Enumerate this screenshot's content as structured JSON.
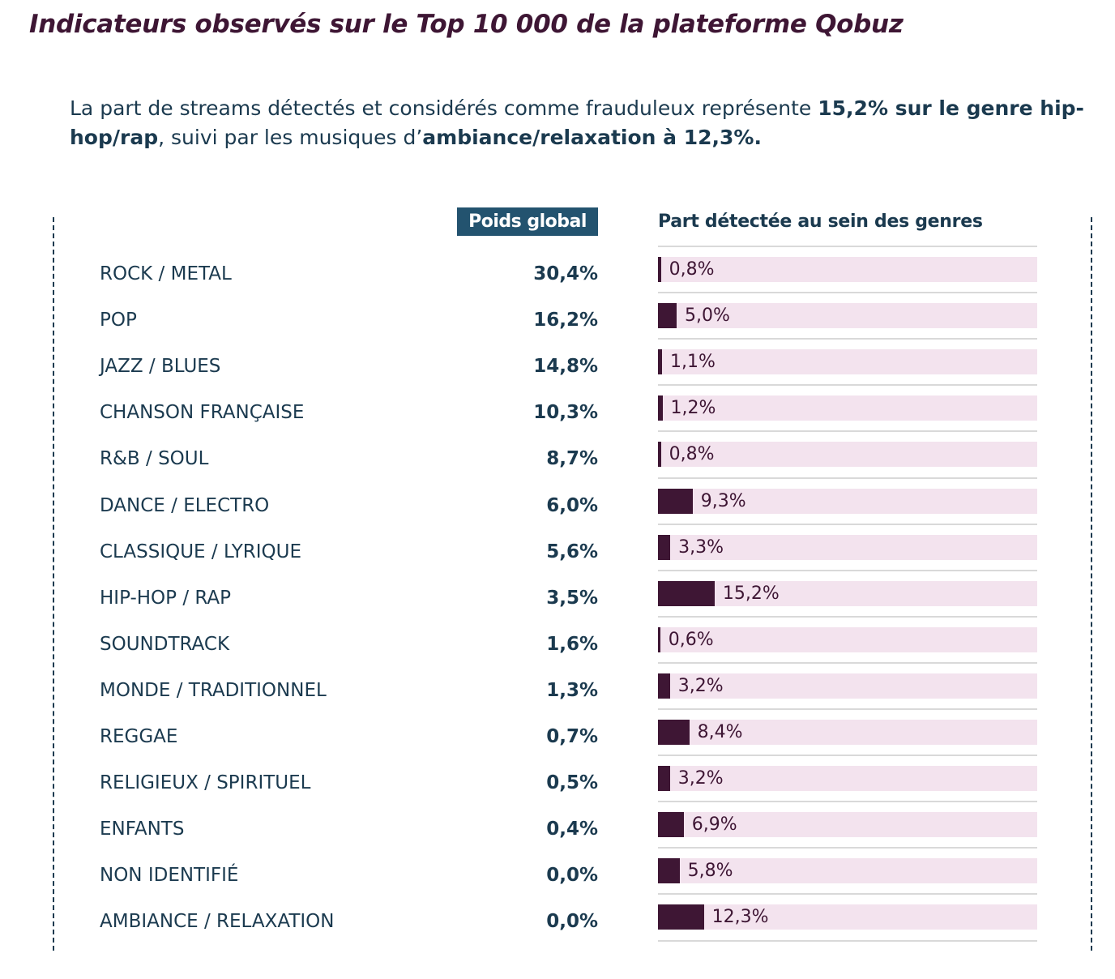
{
  "title": "Indicateurs observés sur le Top 10 000 de la plateforme Qobuz",
  "intro": {
    "p1": "La part de streams détectés et considérés comme frauduleux représente ",
    "b1": "15,2% sur le genre hip-hop/rap",
    "p2": ", suivi par les musiques d’",
    "b2": "ambiance/relaxation à 12,3%."
  },
  "colors": {
    "bar": "#3e1634",
    "track": "#f3e3ee",
    "header_bg": "#23536f",
    "text": "#1b3a4f"
  },
  "chart_data": {
    "type": "bar",
    "orientation": "horizontal",
    "column_headers": {
      "poids": "Poids global",
      "part": "Part détectée au sein des genres"
    },
    "categories": [
      "ROCK / METAL",
      "POP",
      "JAZZ / BLUES",
      "CHANSON FRANÇAISE",
      "R&B / SOUL",
      "DANCE / ELECTRO",
      "CLASSIQUE / LYRIQUE",
      "HIP-HOP / RAP",
      "SOUNDTRACK",
      "MONDE / TRADITIONNEL",
      "REGGAE",
      "RELIGIEUX / SPIRITUEL",
      "ENFANTS",
      "NON IDENTIFIÉ",
      "AMBIANCE / RELAXATION"
    ],
    "poids_global_labels": [
      "30,4%",
      "16,2%",
      "14,8%",
      "10,3%",
      "8,7%",
      "6,0%",
      "5,6%",
      "3,5%",
      "1,6%",
      "1,3%",
      "0,7%",
      "0,5%",
      "0,4%",
      "0,0%",
      "0,0%"
    ],
    "poids_global": [
      30.4,
      16.2,
      14.8,
      10.3,
      8.7,
      6.0,
      5.6,
      3.5,
      1.6,
      1.3,
      0.7,
      0.5,
      0.4,
      0.0,
      0.0
    ],
    "part_detectee": [
      0.8,
      5.0,
      1.1,
      1.2,
      0.8,
      9.3,
      3.3,
      15.2,
      0.6,
      3.2,
      8.4,
      3.2,
      6.9,
      5.8,
      12.3
    ],
    "part_detectee_labels": [
      "0,8%",
      "5,0%",
      "1,1%",
      "1,2%",
      "0,8%",
      "9,3%",
      "3,3%",
      "15,2%",
      "0,6%",
      "3,2%",
      "8,4%",
      "3,2%",
      "6,9%",
      "5,8%",
      "12,3%"
    ],
    "xlim": [
      0,
      100
    ],
    "ylabel": "",
    "xlabel": ""
  }
}
